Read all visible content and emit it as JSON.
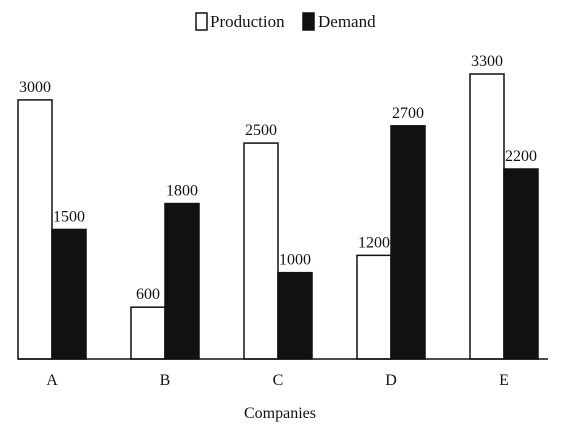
{
  "chart_data": {
    "type": "bar",
    "categories": [
      "A",
      "B",
      "C",
      "D",
      "E"
    ],
    "series": [
      {
        "name": "Production",
        "values": [
          3000,
          600,
          2500,
          1200,
          3300
        ],
        "fill": "#ffffff",
        "stroke": "#111111"
      },
      {
        "name": "Demand",
        "values": [
          1500,
          1800,
          1000,
          2700,
          2200
        ],
        "fill": "#111111",
        "stroke": "#111111"
      }
    ],
    "title": "",
    "xlabel": "Companies",
    "ylabel": "",
    "ylim": [
      0,
      3300
    ],
    "grid": false,
    "legend_position": "top-center",
    "show_value_labels": true
  }
}
